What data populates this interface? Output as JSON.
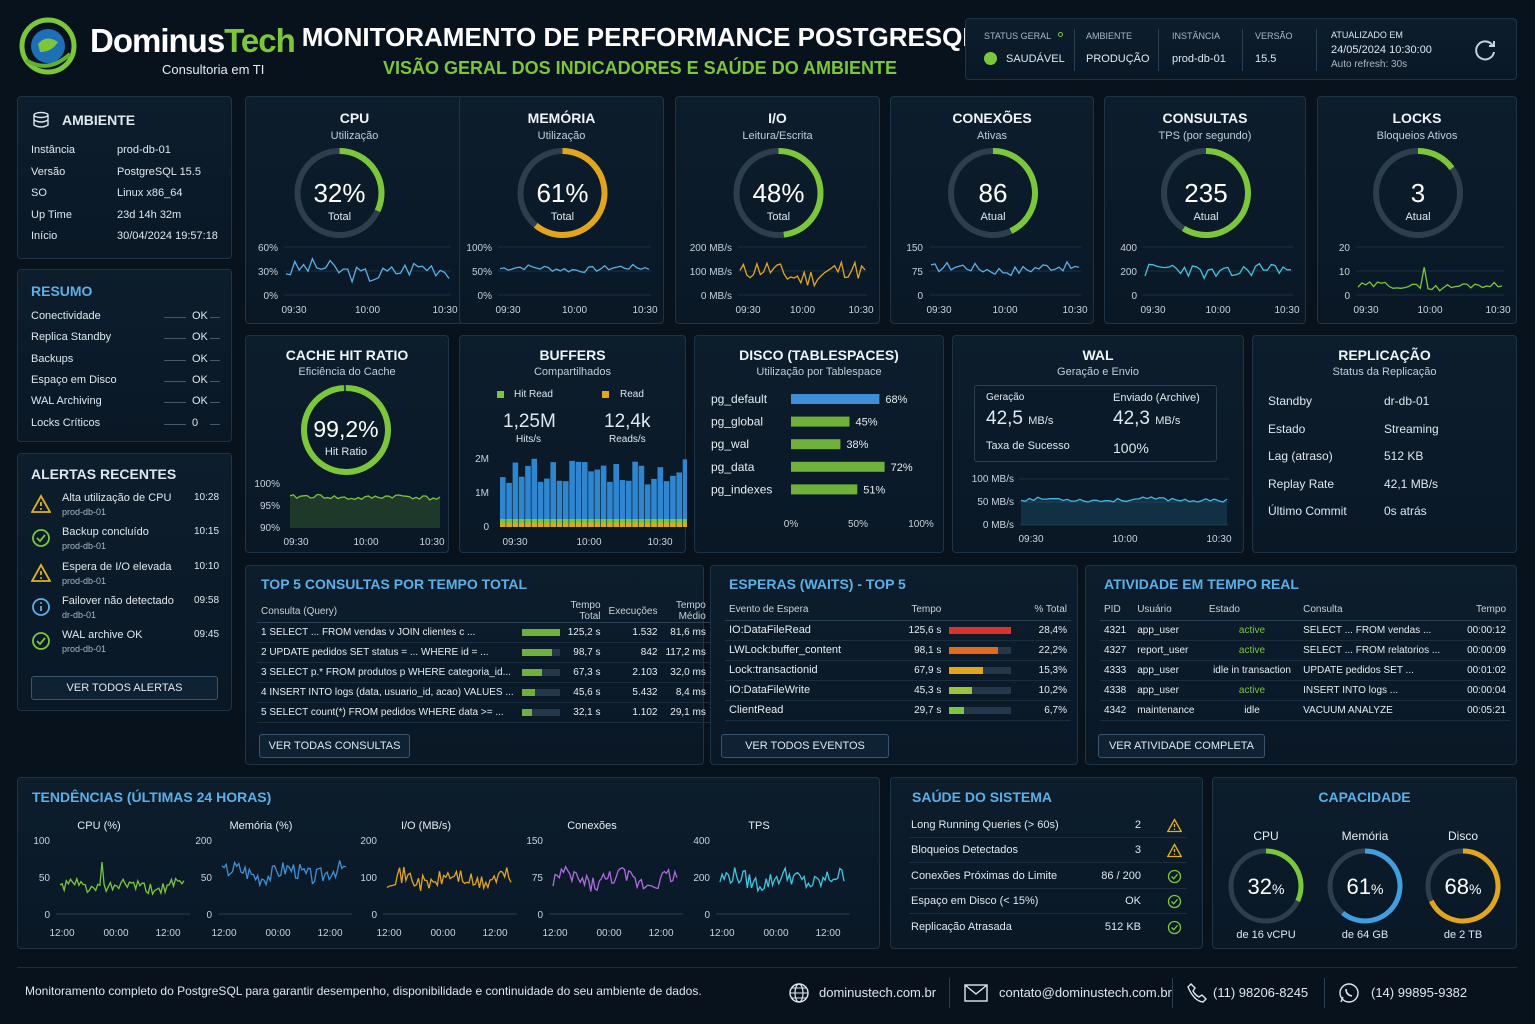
{
  "brand": {
    "name_a": "Dominus",
    "name_b": "Tech",
    "tagline": "Consultoria em TI"
  },
  "header": {
    "title": "MONITORAMENTO DE PERFORMANCE POSTGRESQL",
    "subtitle": "VISÃO GERAL DOS INDICADORES E SAÚDE DO AMBIENTE"
  },
  "status": {
    "general_label": "STATUS GERAL",
    "general_value": "SAUDÁVEL",
    "env_label": "AMBIENTE",
    "env_value": "PRODUÇÃO",
    "inst_label": "INSTÂNCIA",
    "inst_value": "prod-db-01",
    "ver_label": "VERSÃO",
    "ver_value": "15.5",
    "upd_label": "ATUALIZADO EM",
    "upd_value": "24/05/2024 10:30:00",
    "refresh": "Auto refresh: 30s"
  },
  "ambiente": {
    "title": "AMBIENTE",
    "rows": [
      {
        "k": "Instância",
        "v": "prod-db-01"
      },
      {
        "k": "Versão",
        "v": "PostgreSQL 15.5"
      },
      {
        "k": "SO",
        "v": "Linux x86_64"
      },
      {
        "k": "Up Time",
        "v": "23d 14h 32m"
      },
      {
        "k": "Início",
        "v": "30/04/2024  19:57:18"
      }
    ]
  },
  "resumo": {
    "title": "RESUMO",
    "rows": [
      {
        "k": "Conectividade",
        "v": "OK",
        "ok": true
      },
      {
        "k": "Replica Standby",
        "v": "OK",
        "ok": true
      },
      {
        "k": "Backups",
        "v": "OK",
        "ok": true
      },
      {
        "k": "Espaço em Disco",
        "v": "OK",
        "ok": true
      },
      {
        "k": "WAL Archiving",
        "v": "OK",
        "ok": true
      },
      {
        "k": "Locks Críticos",
        "v": "0",
        "ok": false
      }
    ]
  },
  "alertas": {
    "title": "ALERTAS RECENTES",
    "button": "VER TODOS ALERTAS",
    "items": [
      {
        "icon": "warning",
        "title": "Alta utilização de CPU",
        "host": "prod-db-01",
        "time": "10:28"
      },
      {
        "icon": "check",
        "title": "Backup concluído",
        "host": "prod-db-01",
        "time": "10:15"
      },
      {
        "icon": "warning",
        "title": "Espera de I/O elevada",
        "host": "prod-db-01",
        "time": "10:10"
      },
      {
        "icon": "info",
        "title": "Failover não detectado",
        "host": "dr-db-01",
        "time": "09:58"
      },
      {
        "icon": "check",
        "title": "WAL archive OK",
        "host": "prod-db-01",
        "time": "09:45"
      }
    ]
  },
  "gauges": [
    {
      "id": "cpu",
      "title": "CPU",
      "sub": "Utilização",
      "value": "32%",
      "label": "Total",
      "pct": 0.32,
      "color": "#7bc63a",
      "line": "#5ab0e8",
      "yticks": [
        "60%",
        "30%",
        "0%"
      ],
      "xticks": [
        "09:30",
        "10:00",
        "10:30"
      ]
    },
    {
      "id": "mem",
      "title": "MEMÓRIA",
      "sub": "Utilização",
      "value": "61%",
      "label": "Total",
      "pct": 0.61,
      "color": "#e2a51e",
      "line": "#5ab0e8",
      "yticks": [
        "100%",
        "50%",
        "0%"
      ],
      "xticks": [
        "09:30",
        "10:00",
        "10:30"
      ]
    },
    {
      "id": "io",
      "title": "I/O",
      "sub": "Leitura/Escrita",
      "value": "48%",
      "label": "Total",
      "pct": 0.48,
      "color": "#7bc63a",
      "line": "#e2a51e",
      "yticks": [
        "200 MB/s",
        "100 MB/s",
        "0 MB/s"
      ],
      "xticks": [
        "09:30",
        "10:00",
        "10:30"
      ]
    },
    {
      "id": "conn",
      "title": "CONEXÕES",
      "sub": "Ativas",
      "value": "86",
      "label": "Atual",
      "pct": 0.43,
      "color": "#7bc63a",
      "line": "#5ab0e8",
      "yticks": [
        "150",
        "75",
        "0"
      ],
      "xticks": [
        "09:30",
        "10:00",
        "10:30"
      ]
    },
    {
      "id": "tps",
      "title": "CONSULTAS",
      "sub": "TPS (por segundo)",
      "value": "235",
      "label": "Atual",
      "pct": 0.59,
      "color": "#7bc63a",
      "line": "#3fc6e0",
      "yticks": [
        "400",
        "200",
        "0"
      ],
      "xticks": [
        "09:30",
        "10:00",
        "10:30"
      ]
    },
    {
      "id": "locks",
      "title": "LOCKS",
      "sub": "Bloqueios Ativos",
      "value": "3",
      "label": "Atual",
      "pct": 0.15,
      "color": "#7bc63a",
      "line": "#7bc63a",
      "yticks": [
        "20",
        "10",
        "0"
      ],
      "xticks": [
        "09:30",
        "10:00",
        "10:30"
      ]
    }
  ],
  "cache": {
    "title": "CACHE HIT RATIO",
    "sub": "Eficiência do Cache",
    "value": "99,2%",
    "label": "Hit Ratio",
    "pct": 0.992,
    "yticks": [
      "100%",
      "95%",
      "90%"
    ],
    "xticks": [
      "09:30",
      "10:00",
      "10:30"
    ]
  },
  "buffers": {
    "title": "BUFFERS",
    "sub": "Compartilhados",
    "leg1": "Hit Read",
    "leg2": "Read",
    "v1": "1,25M",
    "u1": "Hits/s",
    "v2": "12,4k",
    "u2": "Reads/s",
    "yticks": [
      "2M",
      "1M",
      "0"
    ],
    "xticks": [
      "09:30",
      "10:00",
      "10:30"
    ]
  },
  "disco": {
    "title": "DISCO (TABLESPACES)",
    "sub": "Utilização por Tablespace",
    "xticks": [
      "0%",
      "50%",
      "100%"
    ],
    "items": [
      {
        "name": "pg_default",
        "pct": 68,
        "label": "68%",
        "color": "#3f8fd6"
      },
      {
        "name": "pg_global",
        "pct": 45,
        "label": "45%",
        "color": "#6fb13a"
      },
      {
        "name": "pg_wal",
        "pct": 38,
        "label": "38%",
        "color": "#6fb13a"
      },
      {
        "name": "pg_data",
        "pct": 72,
        "label": "72%",
        "color": "#6fb13a"
      },
      {
        "name": "pg_indexes",
        "pct": 51,
        "label": "51%",
        "color": "#6fb13a"
      }
    ]
  },
  "wal": {
    "title": "WAL",
    "sub": "Geração e Envio",
    "gen_label": "Geração",
    "gen_value": "42,5",
    "gen_unit": "MB/s",
    "sent_label": "Enviado (Archive)",
    "sent_value": "42,3",
    "sent_unit": "MB/s",
    "rate_label": "Taxa de Sucesso",
    "rate_value": "100%",
    "yticks": [
      "100 MB/s",
      "50 MB/s",
      "0 MB/s"
    ],
    "xticks": [
      "09:30",
      "10:00",
      "10:30"
    ]
  },
  "replicacao": {
    "title": "REPLICAÇÃO",
    "sub": "Status da Replicação",
    "rows": [
      {
        "k": "Standby",
        "v": "dr-db-01",
        "hl": false
      },
      {
        "k": "Estado",
        "v": "Streaming",
        "hl": true
      },
      {
        "k": "Lag (atraso)",
        "v": "512 KB",
        "hl": false
      },
      {
        "k": "Replay Rate",
        "v": "42,1 MB/s",
        "hl": false
      },
      {
        "k": "Último Commit",
        "v": "0s atrás",
        "hl": false
      }
    ]
  },
  "top5": {
    "title": "TOP 5 CONSULTAS POR TEMPO TOTAL",
    "button": "VER TODAS CONSULTAS",
    "cols": [
      "Consulta (Query)",
      "Tempo Total",
      "Execuções",
      "Tempo Médio"
    ],
    "rows": [
      {
        "q": "1  SELECT ... FROM vendas v JOIN clientes c ...",
        "t": "125,2 s",
        "n": "1.532",
        "m": "81,6 ms",
        "frac": 1.0
      },
      {
        "q": "2  UPDATE pedidos SET status = ... WHERE id = ...",
        "t": "98,7 s",
        "n": "842",
        "m": "117,2 ms",
        "frac": 0.79
      },
      {
        "q": "3  SELECT p.* FROM produtos p WHERE categoria_id...",
        "t": "67,3 s",
        "n": "2.103",
        "m": "32,0 ms",
        "frac": 0.54
      },
      {
        "q": "4  INSERT INTO logs (data, usuario_id, acao) VALUES ...",
        "t": "45,6 s",
        "n": "5.432",
        "m": "8,4 ms",
        "frac": 0.36
      },
      {
        "q": "5  SELECT count(*) FROM pedidos WHERE data >= ...",
        "t": "32,1 s",
        "n": "1.102",
        "m": "29,1 ms",
        "frac": 0.26
      }
    ]
  },
  "waits": {
    "title": "ESPERAS (WAITS) - TOP 5",
    "button": "VER TODOS EVENTOS",
    "cols": [
      "Evento de Espera",
      "Tempo",
      "% Total"
    ],
    "rows": [
      {
        "e": "IO:DataFileRead",
        "t": "125,6 s",
        "p": "28,4%",
        "frac": 1.0,
        "color": "#d8332f"
      },
      {
        "e": "LWLock:buffer_content",
        "t": "98,1 s",
        "p": "22,2%",
        "frac": 0.78,
        "color": "#e06a1e"
      },
      {
        "e": "Lock:transactionid",
        "t": "67,9 s",
        "p": "15,3%",
        "frac": 0.54,
        "color": "#e2a51e"
      },
      {
        "e": "IO:DataFileWrite",
        "t": "45,3 s",
        "p": "10,2%",
        "frac": 0.36,
        "color": "#9ec23a"
      },
      {
        "e": "ClientRead",
        "t": "29,7 s",
        "p": "6,7%",
        "frac": 0.24,
        "color": "#7bc63a"
      }
    ]
  },
  "atividade": {
    "title": "ATIVIDADE EM TEMPO REAL",
    "button": "VER ATIVIDADE COMPLETA",
    "cols": [
      "PID",
      "Usuário",
      "Estado",
      "Consulta",
      "Tempo"
    ],
    "rows": [
      {
        "pid": "4321",
        "u": "app_user",
        "s": "active",
        "q": "SELECT ... FROM vendas ...",
        "t": "00:00:12",
        "act": true
      },
      {
        "pid": "4327",
        "u": "report_user",
        "s": "active",
        "q": "SELECT ... FROM relatorios ...",
        "t": "00:00:09",
        "act": true
      },
      {
        "pid": "4333",
        "u": "app_user",
        "s": "idle in transaction",
        "q": "UPDATE pedidos SET ...",
        "t": "00:01:02",
        "act": false
      },
      {
        "pid": "4338",
        "u": "app_user",
        "s": "active",
        "q": "INSERT INTO logs ...",
        "t": "00:00:04",
        "act": true
      },
      {
        "pid": "4342",
        "u": "maintenance",
        "s": "idle",
        "q": "VACUUM ANALYZE",
        "t": "00:05:21",
        "act": false
      }
    ]
  },
  "tendencias": {
    "title": "TENDÊNCIAS (ÚLTIMAS 24 HORAS)",
    "charts": [
      {
        "title": "CPU (%)",
        "yticks": [
          "100",
          "50",
          "0"
        ],
        "xticks": [
          "12:00",
          "00:00",
          "12:00"
        ],
        "color": "#7bc63a"
      },
      {
        "title": "Memória (%)",
        "yticks": [
          "200",
          "50",
          "0"
        ],
        "xticks": [
          "12:00",
          "00:00",
          "12:00"
        ],
        "color": "#3f8fd6"
      },
      {
        "title": "I/O (MB/s)",
        "yticks": [
          "200",
          "100",
          "0"
        ],
        "xticks": [
          "12:00",
          "00:00",
          "12:00"
        ],
        "color": "#e2a51e"
      },
      {
        "title": "Conexões",
        "yticks": [
          "150",
          "75",
          "0"
        ],
        "xticks": [
          "12:00",
          "00:00",
          "12:00"
        ],
        "color": "#b06ae0"
      },
      {
        "title": "TPS",
        "yticks": [
          "400",
          "200",
          "0"
        ],
        "xticks": [
          "12:00",
          "00:00",
          "12:00"
        ],
        "color": "#3fc6e0"
      }
    ]
  },
  "saude": {
    "title": "SAÚDE DO SISTEMA",
    "rows": [
      {
        "k": "Long Running Queries (> 60s)",
        "v": "2",
        "icon": "warning",
        "hl": true
      },
      {
        "k": "Bloqueios Detectados",
        "v": "3",
        "icon": "warning",
        "hl": true
      },
      {
        "k": "Conexões Próximas do Limite",
        "v": "86 / 200",
        "icon": "check",
        "hl": false
      },
      {
        "k": "Espaço em Disco (< 15%)",
        "v": "OK",
        "icon": "check",
        "hl": false
      },
      {
        "k": "Replicação Atrasada",
        "v": "512 KB",
        "icon": "check",
        "hl": false
      }
    ]
  },
  "capacidade": {
    "title": "CAPACIDADE",
    "items": [
      {
        "title": "CPU",
        "num": "32",
        "unit": "%",
        "sub": "de 16 vCPU",
        "pct": 0.32,
        "color": "#7bc63a"
      },
      {
        "title": "Memória",
        "num": "61",
        "unit": "%",
        "sub": "de 64 GB",
        "pct": 0.61,
        "color": "#3f9fe0"
      },
      {
        "title": "Disco",
        "num": "68",
        "unit": "%",
        "sub": "de 2 TB",
        "pct": 0.68,
        "color": "#e2a51e"
      }
    ]
  },
  "footer": {
    "text": "Monitoramento completo do PostgreSQL para garantir desempenho, disponibilidade e continuidade do seu ambiente de dados.",
    "site": "dominustech.com.br",
    "email": "contato@dominustech.com.br",
    "phone": "(11) 98206-8245",
    "whatsapp": "(14) 99895-9382"
  }
}
